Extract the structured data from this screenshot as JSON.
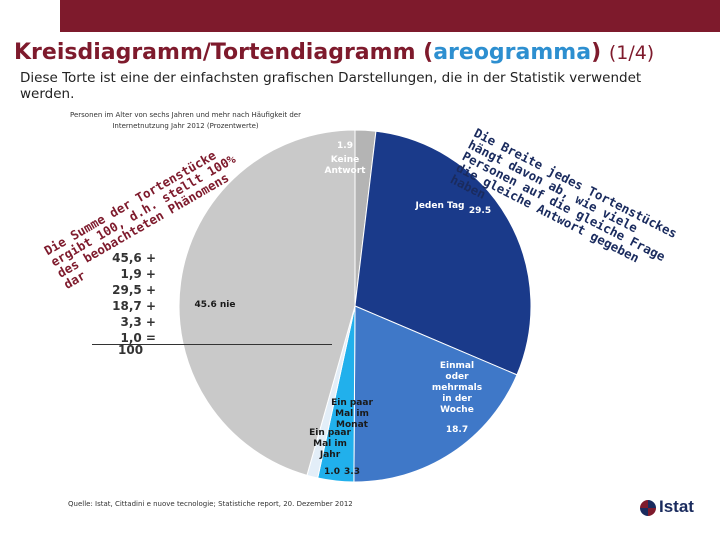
{
  "slide": {
    "title_main": "Kreisdiagramm/Tortendiagramm (",
    "title_highlight": "areogramma",
    "title_close": ")",
    "page_indicator": "(1/4)",
    "intro": "Diese Torte ist eine der einfachsten grafischen Darstellungen, die in der Statistik verwendet werden.",
    "subtitle": "Personen im Alter von sechs Jahren und mehr nach Häufigkeit der Internetnutzung Jahr 2012 (Prozentwerte)",
    "source": "Quelle: Istat, Cittadini e nuove tecnologie; Statistiche report, 20. Dezember 2012",
    "logo_text": "Istat",
    "annotation_right": "Die Breite jedes Tortenstückes hängt davon ab, wie viele Personen auf die gleiche Frage die gleiche Antwort gegeben haben",
    "annotation_left": "Die Summe der Tortenstücke ergibt 100, d.h. stellt 100% des beobachteten Phänomens dar",
    "sum_lines": [
      "45,6 +",
      "1,9 +",
      "29,5 +",
      "18,7 +",
      "3,3 +",
      "1,0 ="
    ],
    "sum_total": "100"
  },
  "colors": {
    "brand": "#7e1a2c",
    "accent": "#2d8fd0",
    "dark_blue": "#1a3a8a",
    "mid_blue": "#3f78c8",
    "light_blue": "#21b0ec",
    "grey": "#c9c9c9",
    "grey_dark": "#b4b4b4"
  },
  "chart_data": {
    "type": "pie",
    "title": "Personen im Alter von sechs Jahren und mehr nach Häufigkeit der Internetnutzung Jahr 2012 (Prozentwerte)",
    "unit": "%",
    "slices": [
      {
        "label": "Keine Antwort",
        "value": 1.9,
        "display": "1.9",
        "color": "#b4b4b4",
        "text_color": "#ffffff"
      },
      {
        "label": "Jeden Tag",
        "value": 29.5,
        "display": "29.5",
        "color": "#1a3a8a",
        "text_color": "#ffffff"
      },
      {
        "label": "Einmal oder mehrmals in der Woche",
        "value": 18.7,
        "display": "18.7",
        "color": "#3f78c8",
        "text_color": "#ffffff"
      },
      {
        "label": "Ein paar Mal im Monat",
        "value": 3.3,
        "display": "3.3",
        "color": "#21b0ec",
        "text_color": "#1a1a1a"
      },
      {
        "label": "Ein paar Mal im Jahr",
        "value": 1.0,
        "display": "1.0",
        "color": "#e3eef8",
        "text_color": "#1a1a1a"
      },
      {
        "label": "nie",
        "value": 45.6,
        "display": "45.6",
        "color": "#c9c9c9",
        "text_color": "#1a1a1a"
      }
    ]
  }
}
